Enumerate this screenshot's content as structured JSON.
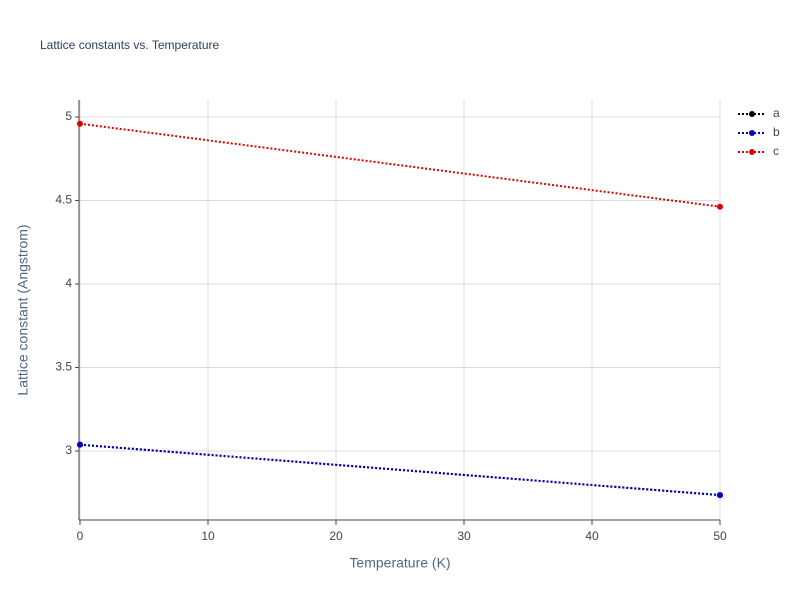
{
  "chart_data": {
    "type": "line",
    "title": "Lattice constants vs. Temperature",
    "xlabel": "Temperature (K)",
    "ylabel": "Lattice constant (Angstrom)",
    "x": [
      0,
      50
    ],
    "series": [
      {
        "name": "a",
        "color": "#000000",
        "values": [
          3.038,
          2.736
        ]
      },
      {
        "name": "b",
        "color": "#0000cc",
        "values": [
          3.038,
          2.736
        ]
      },
      {
        "name": "c",
        "color": "#dd0000",
        "values": [
          4.96,
          4.463
        ]
      }
    ],
    "xlim": [
      0,
      50
    ],
    "xticks": [
      0,
      10,
      20,
      30,
      40,
      50
    ],
    "ylim": [
      2.587,
      5.102
    ],
    "yticks": [
      3,
      3.5,
      4,
      4.5,
      5
    ],
    "grid": true,
    "legend": "top-right"
  }
}
